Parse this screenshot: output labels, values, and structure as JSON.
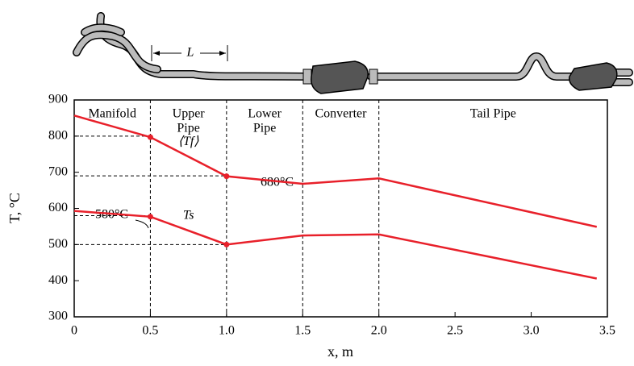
{
  "illustration": {
    "label": "L"
  },
  "chart_data": {
    "type": "line",
    "xlabel": "x, m",
    "ylabel": "T, °C",
    "xlim": [
      0,
      3.5
    ],
    "ylim": [
      300,
      900
    ],
    "xticks": [
      0,
      0.5,
      {
        "value": 1,
        "label": "1.0"
      },
      1.5,
      {
        "value": 2,
        "label": "2.0"
      },
      2.5,
      {
        "value": 3,
        "label": "3.0"
      },
      3.5
    ],
    "yticks": [
      300,
      400,
      500,
      600,
      700,
      800,
      900
    ],
    "regions": {
      "bounds": [
        0.5,
        1,
        1.5,
        2
      ],
      "labels": [
        [
          "Manifold"
        ],
        [
          "Upper",
          "Pipe"
        ],
        [
          "Lower",
          "Pipe"
        ],
        [
          "Converter"
        ],
        [
          "Tail Pipe"
        ]
      ]
    },
    "reference_lines": [
      {
        "y": 800,
        "x": 0.5
      },
      {
        "y": 690,
        "x": 1
      },
      {
        "y": 580,
        "x": 0.5
      },
      {
        "y": 500,
        "x": 1
      }
    ],
    "x": [
      0,
      0.5,
      1,
      1.5,
      2,
      3.43
    ],
    "series": [
      {
        "name": "⟨Tf⟩",
        "color": "#e8202a",
        "values": [
          857,
          797,
          689,
          668,
          683,
          549
        ],
        "markers": [
          1,
          2
        ]
      },
      {
        "name": "Ts",
        "color": "#e8202a",
        "values": [
          593,
          577,
          500,
          525,
          528,
          406
        ],
        "markers": [
          1,
          2
        ]
      }
    ],
    "annotations": [
      "680°C",
      "580°C"
    ]
  }
}
